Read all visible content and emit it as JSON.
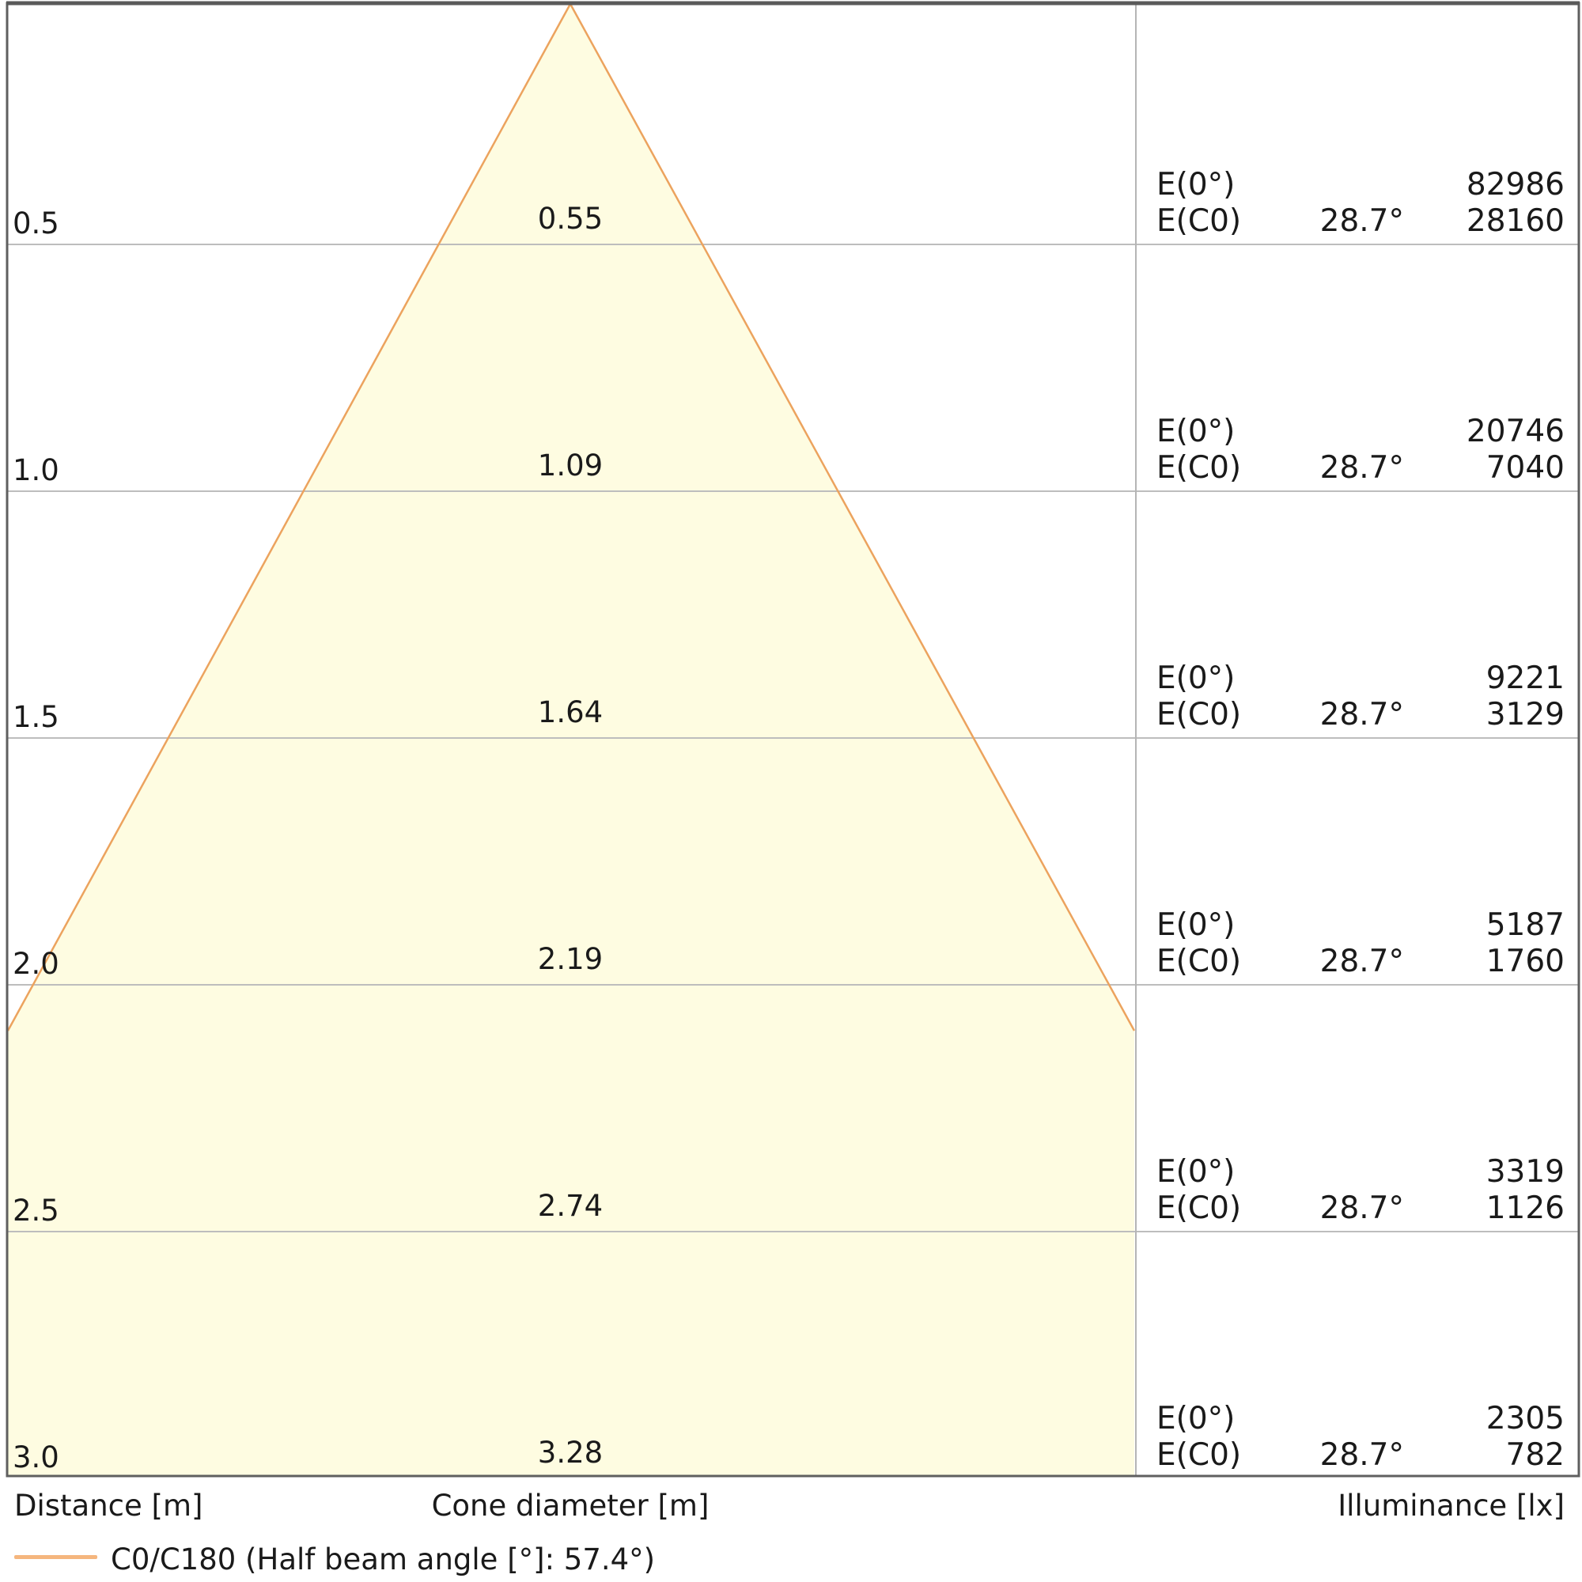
{
  "chart_data": {
    "type": "area",
    "subtype": "photometric_light_cone_diagram",
    "title": "",
    "legend_label": "C0/C180 (Half beam angle [°]: 57.4°)",
    "legend_position": "bottom-left",
    "half_beam_angle_deg": 57.4,
    "cone_half_angle_deg": 28.7,
    "grid": "on",
    "distance_range_m": [
      0,
      3.0
    ],
    "axis_labels": {
      "distance": "Distance [m]",
      "cone_diameter": "Cone diameter [m]",
      "illuminance": "Illuminance [lx]"
    },
    "distances_m": [
      0.5,
      1.0,
      1.5,
      2.0,
      2.5,
      3.0
    ],
    "cone_diameters_m": [
      0.55,
      1.09,
      1.64,
      2.19,
      2.74,
      3.28
    ],
    "illuminance_e0_lx": [
      82986,
      20746,
      9221,
      5187,
      3319,
      2305
    ],
    "illuminance_ec0_lx": [
      28160,
      7040,
      3129,
      1760,
      1126,
      782
    ],
    "rows": [
      {
        "distance": "0.5",
        "diameter": "0.55",
        "e0_label": "E(0°)",
        "e0_value": "82986",
        "ec0_label": "E(C0)",
        "angle": "28.7°",
        "ec0_value": "28160"
      },
      {
        "distance": "1.0",
        "diameter": "1.09",
        "e0_label": "E(0°)",
        "e0_value": "20746",
        "ec0_label": "E(C0)",
        "angle": "28.7°",
        "ec0_value": "7040"
      },
      {
        "distance": "1.5",
        "diameter": "1.64",
        "e0_label": "E(0°)",
        "e0_value": "9221",
        "ec0_label": "E(C0)",
        "angle": "28.7°",
        "ec0_value": "3129"
      },
      {
        "distance": "2.0",
        "diameter": "2.19",
        "e0_label": "E(0°)",
        "e0_value": "5187",
        "ec0_label": "E(C0)",
        "angle": "28.7°",
        "ec0_value": "1760"
      },
      {
        "distance": "2.5",
        "diameter": "2.74",
        "e0_label": "E(0°)",
        "e0_value": "3319",
        "ec0_label": "E(C0)",
        "angle": "28.7°",
        "ec0_value": "1126"
      },
      {
        "distance": "3.0",
        "diameter": "3.28",
        "e0_label": "E(0°)",
        "e0_value": "2305",
        "ec0_label": "E(C0)",
        "angle": "28.7°",
        "ec0_value": "782"
      }
    ],
    "colors": {
      "cone_fill": "#fefce1",
      "cone_edge": "#eca35e",
      "legend_line": "#f5b67e",
      "gridline": "#bdbdbd",
      "divider": "#b5b5b5",
      "border": "#5f5f5f",
      "text": "#1a1a1a"
    }
  }
}
